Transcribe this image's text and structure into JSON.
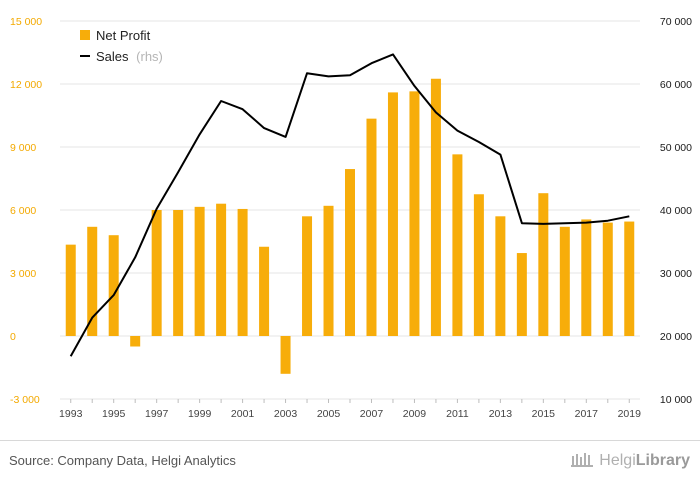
{
  "chart_data": {
    "type": "bar+line",
    "categories": [
      "1993",
      "1994",
      "1995",
      "1996",
      "1997",
      "1998",
      "1999",
      "2000",
      "2001",
      "2002",
      "2003",
      "2004",
      "2005",
      "2006",
      "2007",
      "2008",
      "2009",
      "2010",
      "2011",
      "2012",
      "2013",
      "2014",
      "2015",
      "2016",
      "2017",
      "2018",
      "2019"
    ],
    "x_tick_labels": [
      "1993",
      "1995",
      "1997",
      "1999",
      "2001",
      "2003",
      "2005",
      "2007",
      "2009",
      "2011",
      "2013",
      "2015",
      "2017",
      "2019"
    ],
    "series": [
      {
        "name": "Net Profit",
        "type": "bar",
        "axis": "left",
        "color": "#f7ad0a",
        "values": [
          4350,
          5200,
          4800,
          -500,
          6000,
          6000,
          6150,
          6300,
          6050,
          4250,
          -1800,
          5700,
          6200,
          7950,
          10350,
          11600,
          11650,
          12250,
          8650,
          6750,
          5700,
          3950,
          6800,
          5200,
          5550,
          5400,
          5450
        ]
      },
      {
        "name": "Sales",
        "name_suffix": "(rhs)",
        "type": "line",
        "axis": "right",
        "color": "#000000",
        "values": [
          16800,
          22900,
          26500,
          32500,
          40200,
          46000,
          52000,
          57300,
          56000,
          53000,
          51600,
          61700,
          61200,
          61400,
          63300,
          64700,
          59700,
          55500,
          52600,
          50800,
          48800,
          37900,
          37800,
          37900,
          38000,
          38300,
          39000
        ]
      }
    ],
    "left_axis": {
      "ylim": [
        -3000,
        15000
      ],
      "ticks": [
        "-3 000",
        "0",
        "3 000",
        "6 000",
        "9 000",
        "12 000",
        "15 000"
      ],
      "tick_values": [
        -3000,
        0,
        3000,
        6000,
        9000,
        12000,
        15000
      ],
      "color": "#f3a900"
    },
    "right_axis": {
      "ylim": [
        10000,
        70000
      ],
      "ticks": [
        "10 000",
        "20 000",
        "30 000",
        "40 000",
        "50 000",
        "60 000",
        "70 000"
      ],
      "tick_values": [
        10000,
        20000,
        30000,
        40000,
        50000,
        60000,
        70000
      ],
      "color": "#1a1a1a"
    },
    "grid": true,
    "legend_position": "top-left",
    "title": "",
    "xlabel": "",
    "ylabel": ""
  },
  "footer": {
    "source": "Source: Company Data, Helgi Analytics",
    "brand_light": "Helgi",
    "brand_bold": "Library"
  }
}
